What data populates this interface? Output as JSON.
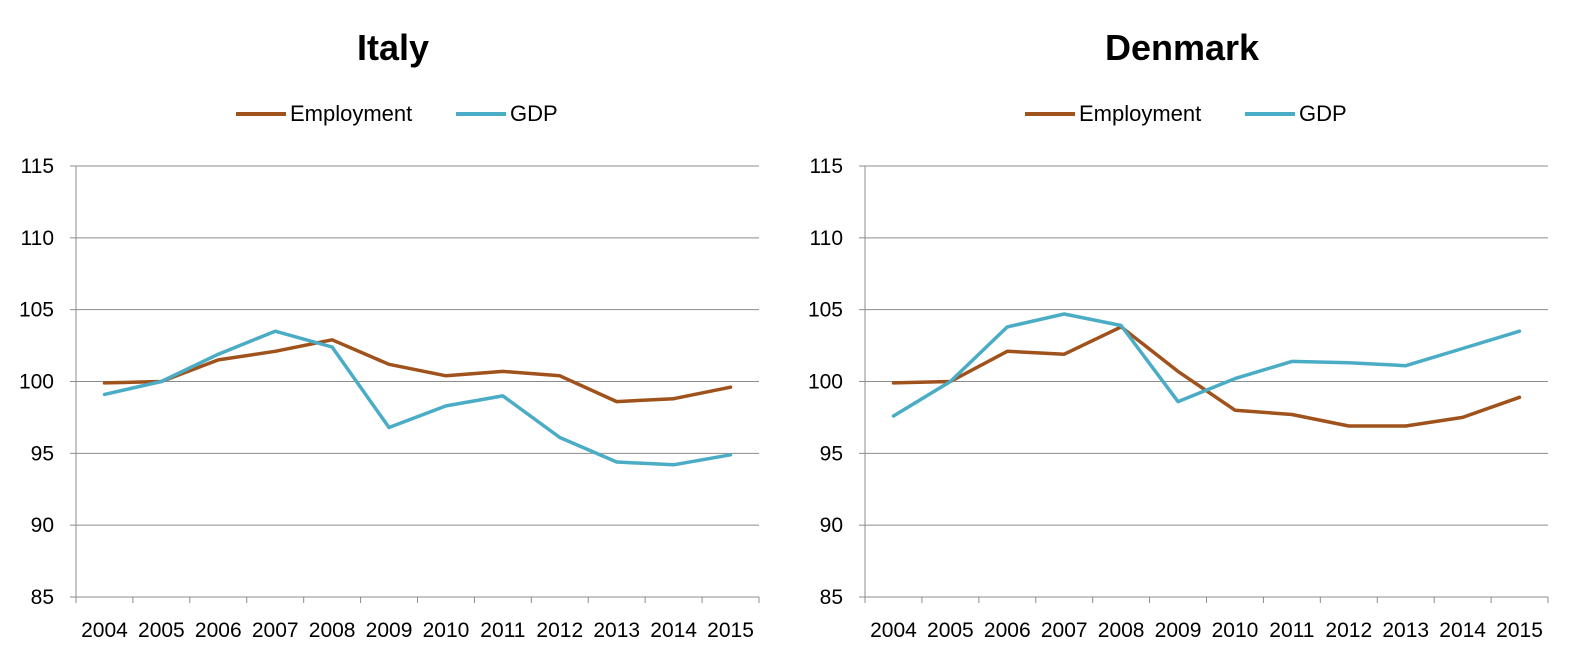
{
  "chart_data": [
    {
      "type": "line",
      "title": "Italy",
      "xlabel": "",
      "ylabel": "",
      "categories": [
        "2004",
        "2005",
        "2006",
        "2007",
        "2008",
        "2009",
        "2010",
        "2011",
        "2012",
        "2013",
        "2014",
        "2015"
      ],
      "ylim": [
        85,
        115
      ],
      "yticks": [
        85,
        90,
        95,
        100,
        105,
        110,
        115
      ],
      "grid": true,
      "legend": "top-center",
      "series": [
        {
          "name": "Employment",
          "color": "#a0521c",
          "values": [
            99.9,
            100.0,
            101.5,
            102.1,
            102.9,
            101.2,
            100.4,
            100.7,
            100.4,
            98.6,
            98.8,
            99.6
          ]
        },
        {
          "name": "GDP",
          "color": "#4aacc5",
          "values": [
            99.1,
            100.0,
            101.9,
            103.5,
            102.4,
            96.8,
            98.3,
            99.0,
            96.1,
            94.4,
            94.2,
            94.9
          ]
        }
      ]
    },
    {
      "type": "line",
      "title": "Denmark",
      "xlabel": "",
      "ylabel": "",
      "categories": [
        "2004",
        "2005",
        "2006",
        "2007",
        "2008",
        "2009",
        "2010",
        "2011",
        "2012",
        "2013",
        "2014",
        "2015"
      ],
      "ylim": [
        85,
        115
      ],
      "yticks": [
        85,
        90,
        95,
        100,
        105,
        110,
        115
      ],
      "grid": true,
      "legend": "top-center",
      "series": [
        {
          "name": "Employment",
          "color": "#a0521c",
          "values": [
            99.9,
            100.0,
            102.1,
            101.9,
            103.8,
            100.7,
            98.0,
            97.7,
            96.9,
            96.9,
            97.5,
            98.9
          ]
        },
        {
          "name": "GDP",
          "color": "#4aacc5",
          "values": [
            97.6,
            100.0,
            103.8,
            104.7,
            103.9,
            98.6,
            100.2,
            101.4,
            101.3,
            101.1,
            102.3,
            103.5
          ]
        }
      ]
    }
  ]
}
